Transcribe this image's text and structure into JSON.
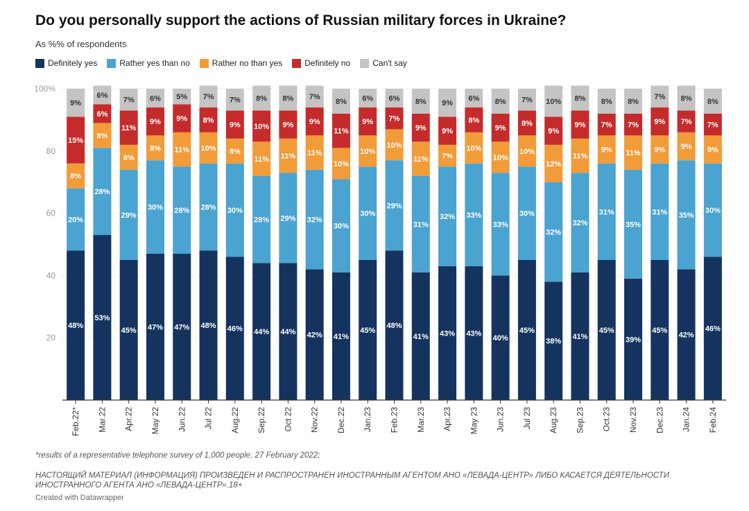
{
  "header": {
    "title": "Do you personally support the actions of Russian military forces in Ukraine?",
    "subtitle": "As %% of respondents"
  },
  "legend": [
    {
      "label": "Definitely yes",
      "color": "#14345f"
    },
    {
      "label": "Rather yes than no",
      "color": "#4aa3d0"
    },
    {
      "label": "Rather no than yes",
      "color": "#f29b39"
    },
    {
      "label": "Definitely no",
      "color": "#c62b2b"
    },
    {
      "label": "Can't say",
      "color": "#c4c4c4"
    }
  ],
  "footer": {
    "footnote": "*results of a representative telephone survey of 1,000 people, 27 February 2022;",
    "disclaimer": "НАСТОЯЩИЙ МАТЕРИАЛ (ИНФОРМАЦИЯ) ПРОИЗВЕДЕН И РАСПРОСТРАНЕН ИНОСТРАННЫМ АГЕНТОМ АНО «ЛЕВАДА-ЦЕНТР» ЛИБО КАСАЕТСЯ ДЕЯТЕЛЬНОСТИ ИНОСТРАННОГО АГЕНТА АНО «ЛЕВАДА-ЦЕНТР».18+",
    "credit": "Created with Datawrapper"
  },
  "chart_data": {
    "type": "bar",
    "stacked": true,
    "title": "Do you personally support the actions of Russian military forces in Ukraine?",
    "subtitle": "As %% of respondents",
    "ylim": [
      0,
      100
    ],
    "yticks": [
      "20",
      "40",
      "60",
      "80",
      "100%"
    ],
    "ytick_values": [
      20,
      40,
      60,
      80,
      100
    ],
    "grid": true,
    "legend_position": "top-left",
    "categories": [
      "Feb.22*",
      "Mar.22",
      "Apr.22",
      "May 22",
      "Jun.22",
      "Jul 22",
      "Aug.22",
      "Sep.22",
      "Oct 22",
      "Nov.22",
      "Dec.22",
      "Jan.23",
      "Feb.23",
      "Mar.23",
      "Apr.23",
      "May 23",
      "Jun.23",
      "Jul 23",
      "Aug.23",
      "Sep.23",
      "Oct.23",
      "Nov.23",
      "Dec.23",
      "Jan.24",
      "Feb.24"
    ],
    "series": [
      {
        "name": "Definitely yes",
        "color": "#14345f",
        "label_color": "#ffffff",
        "values": [
          48,
          53,
          45,
          47,
          47,
          48,
          46,
          44,
          44,
          42,
          41,
          45,
          48,
          41,
          43,
          43,
          40,
          45,
          38,
          41,
          45,
          39,
          45,
          42,
          46
        ]
      },
      {
        "name": "Rather yes than no",
        "color": "#4aa3d0",
        "label_color": "#ffffff",
        "values": [
          20,
          28,
          29,
          30,
          28,
          28,
          30,
          28,
          29,
          32,
          30,
          30,
          29,
          31,
          32,
          33,
          33,
          30,
          32,
          32,
          31,
          35,
          31,
          35,
          30
        ]
      },
      {
        "name": "Rather no than yes",
        "color": "#f29b39",
        "label_color": "#ffffff",
        "values": [
          8,
          8,
          8,
          8,
          11,
          10,
          8,
          11,
          11,
          11,
          10,
          10,
          10,
          11,
          7,
          10,
          10,
          10,
          12,
          11,
          9,
          11,
          9,
          9,
          9
        ]
      },
      {
        "name": "Definitely no",
        "color": "#c62b2b",
        "label_color": "#ffffff",
        "values": [
          15,
          6,
          11,
          9,
          9,
          8,
          9,
          10,
          9,
          9,
          11,
          9,
          7,
          9,
          9,
          8,
          9,
          8,
          9,
          9,
          7,
          7,
          9,
          7,
          7
        ]
      },
      {
        "name": "Can't say",
        "color": "#c4c4c4",
        "label_color": "#333333",
        "values": [
          9,
          6,
          7,
          6,
          5,
          7,
          7,
          8,
          8,
          7,
          8,
          6,
          6,
          8,
          9,
          6,
          8,
          7,
          10,
          8,
          8,
          8,
          7,
          8,
          8
        ]
      }
    ]
  }
}
